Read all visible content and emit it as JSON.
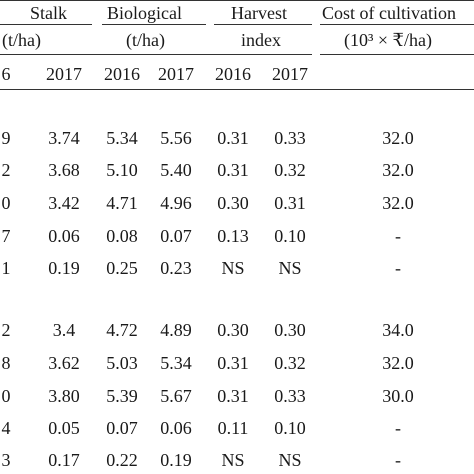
{
  "header": {
    "stalk_label": "Stalk",
    "stalk_unit": "(t/ha)",
    "biological_label": "Biological",
    "biological_unit": "(t/ha)",
    "harvest_label": "Harvest",
    "harvest_unit": "index",
    "cost_label": "Cost of cultivation",
    "cost_unit": "(10³ × ₹/ha)",
    "years": [
      "6",
      "2017",
      "2016",
      "2017",
      "2016",
      "2017"
    ]
  },
  "group1": [
    [
      "9",
      "3.74",
      "5.34",
      "5.56",
      "0.31",
      "0.33",
      "32.0"
    ],
    [
      "2",
      "3.68",
      "5.10",
      "5.40",
      "0.31",
      "0.32",
      "32.0"
    ],
    [
      "0",
      "3.42",
      "4.71",
      "4.96",
      "0.30",
      "0.31",
      "32.0"
    ],
    [
      "7",
      "0.06",
      "0.08",
      "0.07",
      "0.13",
      "0.10",
      "-"
    ],
    [
      "1",
      "0.19",
      "0.25",
      "0.23",
      "NS",
      "NS",
      "-"
    ]
  ],
  "group2": [
    [
      "2",
      "3.4",
      "4.72",
      "4.89",
      "0.30",
      "0.30",
      "34.0"
    ],
    [
      "8",
      "3.62",
      "5.03",
      "5.34",
      "0.31",
      "0.32",
      "32.0"
    ],
    [
      "0",
      "3.80",
      "5.39",
      "5.67",
      "0.31",
      "0.33",
      "30.0"
    ],
    [
      "4",
      "0.05",
      "0.07",
      "0.06",
      "0.11",
      "0.10",
      "-"
    ],
    [
      "3",
      "0.17",
      "0.22",
      "0.19",
      "NS",
      "NS",
      "-"
    ]
  ]
}
